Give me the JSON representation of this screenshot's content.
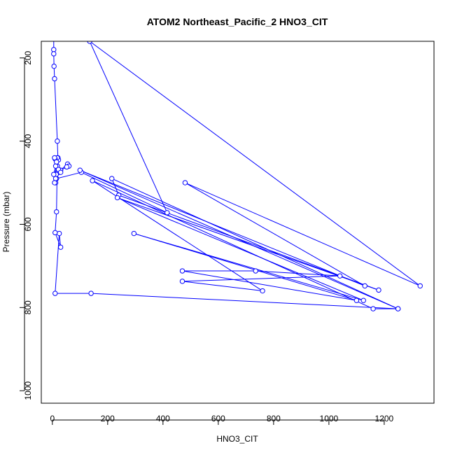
{
  "chart_data": {
    "type": "line",
    "title": "ATOM2 Northeast_Pacific_2 HNO3_CIT",
    "xlabel": "HNO3_CIT",
    "ylabel": "Pressure (mbar)",
    "xlim": [
      -40,
      1380
    ],
    "ylim": [
      1030,
      160
    ],
    "y_reversed": true,
    "x_ticks": [
      0,
      200,
      400,
      600,
      800,
      1000,
      1200
    ],
    "y_ticks": [
      200,
      400,
      600,
      800,
      1000
    ],
    "grid": false,
    "legend": "none",
    "line_color": "#0000ff",
    "marker": "open-circle",
    "series": [
      {
        "x": [
          5,
          5,
          5,
          6,
          8,
          18,
          20,
          22,
          18,
          20,
          12,
          55,
          60,
          52,
          30,
          25,
          15,
          105,
          415,
          135,
          1330,
          480,
          1130,
          100,
          1250,
          215,
          240,
          1180,
          235,
          1125,
          295,
          1100,
          470,
          735,
          1040,
          470,
          760,
          145,
          1160,
          1250,
          140,
          10,
          25,
          30,
          10,
          15,
          18,
          12,
          10,
          15,
          22,
          30,
          14,
          12,
          8,
          5,
          12,
          8
        ],
        "y": [
          120,
          180,
          190,
          220,
          250,
          400,
          440,
          445,
          460,
          475,
          480,
          455,
          460,
          462,
          470,
          475,
          490,
          475,
          572,
          160,
          748,
          500,
          748,
          470,
          803,
          490,
          530,
          758,
          536,
          783,
          622,
          783,
          712,
          712,
          724,
          737,
          760,
          495,
          803,
          803,
          766,
          766,
          622,
          655,
          620,
          570,
          440,
          500,
          443,
          450,
          468,
          475,
          480,
          490,
          500,
          480,
          460,
          440
        ]
      }
    ]
  }
}
